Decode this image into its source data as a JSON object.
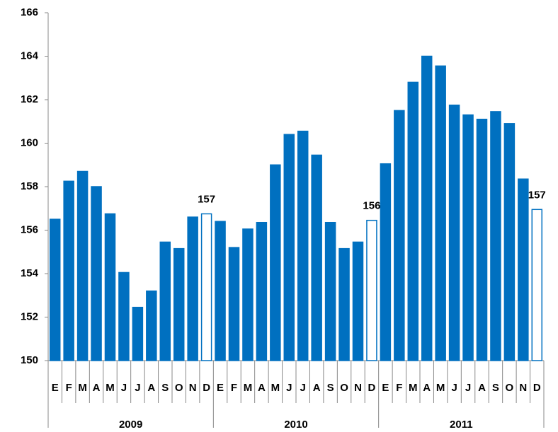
{
  "chart_data": {
    "type": "bar",
    "categories": [
      "E",
      "F",
      "M",
      "A",
      "M",
      "J",
      "J",
      "A",
      "S",
      "O",
      "N",
      "D",
      "E",
      "F",
      "M",
      "A",
      "M",
      "J",
      "J",
      "A",
      "S",
      "O",
      "N",
      "D",
      "E",
      "F",
      "M",
      "A",
      "M",
      "J",
      "J",
      "A",
      "S",
      "O",
      "N",
      "D"
    ],
    "groups": [
      "2009",
      "2010",
      "2011"
    ],
    "values": [
      156.5,
      158.25,
      158.7,
      158.0,
      156.75,
      154.05,
      152.45,
      153.2,
      155.45,
      155.15,
      156.6,
      156.75,
      156.4,
      155.2,
      156.05,
      156.35,
      159.0,
      160.4,
      160.55,
      159.45,
      156.35,
      155.15,
      155.45,
      156.45,
      159.05,
      161.5,
      162.8,
      164.0,
      163.55,
      161.75,
      161.3,
      161.1,
      161.45,
      160.9,
      158.35,
      156.95
    ],
    "value_labels": [
      null,
      null,
      null,
      null,
      null,
      null,
      null,
      null,
      null,
      null,
      null,
      "157",
      null,
      null,
      null,
      null,
      null,
      null,
      null,
      null,
      null,
      null,
      null,
      "156",
      null,
      null,
      null,
      null,
      null,
      null,
      null,
      null,
      null,
      null,
      null,
      "157"
    ],
    "color": "#0070c0",
    "colors": [
      "#0070c0",
      "#0070c0",
      "#0070c0",
      "#0070c0",
      "#0070c0",
      "#0070c0",
      "#0070c0",
      "#0070c0",
      "#0070c0",
      "#0070c0",
      "#0070c0",
      "#ffffff",
      "#0070c0",
      "#0070c0",
      "#0070c0",
      "#0070c0",
      "#0070c0",
      "#0070c0",
      "#0070c0",
      "#0070c0",
      "#0070c0",
      "#0070c0",
      "#0070c0",
      "#ffffff",
      "#0070c0",
      "#0070c0",
      "#0070c0",
      "#0070c0",
      "#0070c0",
      "#0070c0",
      "#0070c0",
      "#0070c0",
      "#0070c0",
      "#0070c0",
      "#0070c0",
      "#ffffff"
    ],
    "ylim": [
      150,
      166
    ],
    "yticks": [
      150,
      152,
      154,
      156,
      158,
      160,
      162,
      164,
      166
    ],
    "grid": false
  }
}
